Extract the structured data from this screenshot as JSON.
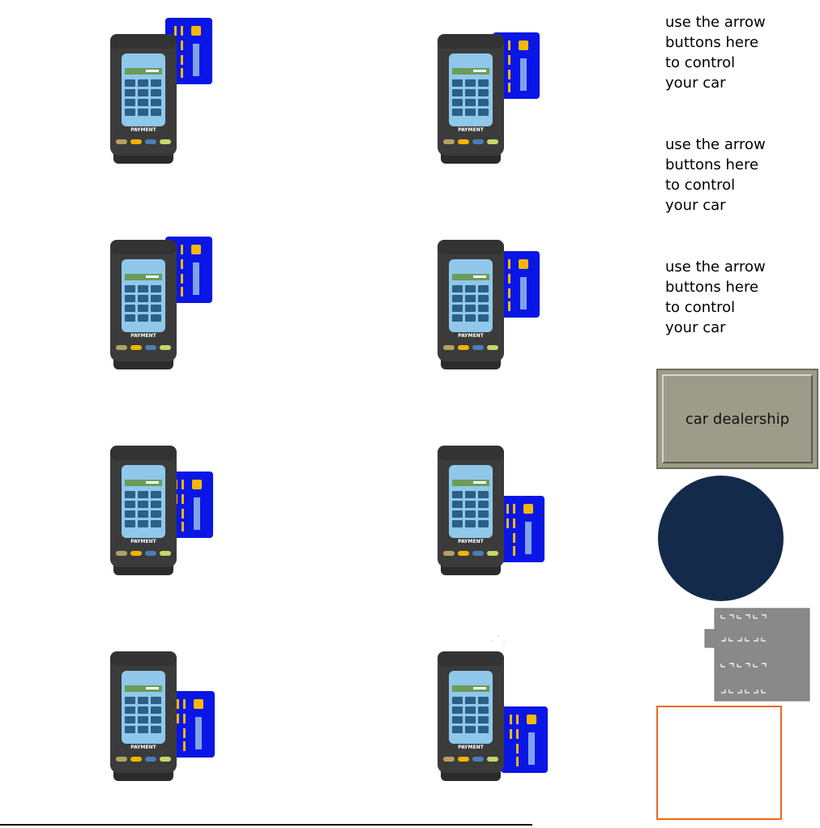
{
  "terminals": [
    {
      "keypad_label": "PAYMENT",
      "card_offset": "upper"
    },
    {
      "keypad_label": "PAYMENT",
      "card_offset": "upper"
    },
    {
      "keypad_label": "PAYMENT",
      "card_offset": "upper"
    },
    {
      "keypad_label": "PAYMENT",
      "card_offset": "middle"
    },
    {
      "keypad_label": "PAYMENT",
      "card_offset": "middle"
    },
    {
      "keypad_label": "PAYMENT",
      "card_offset": "lower"
    },
    {
      "keypad_label": "PAYMENT",
      "card_offset": "lower"
    },
    {
      "keypad_label": "PAYMENT",
      "card_offset": "lower"
    }
  ],
  "hints": [
    "use the arrow\nbuttons here\nto control\nyour car",
    "use the arrow\nbuttons here\nto control\nyour car",
    "use the arrow\nbuttons here\nto control\nyour car"
  ],
  "dealership": {
    "label": "car dealership"
  },
  "colors": {
    "card_blue": "#0a16e6",
    "card_stripe": "#f5b800",
    "terminal_body": "#3b3b3b",
    "screen": "#8fc8ea",
    "screen_bar": "#6b9c5a",
    "key": "#2c5f86",
    "round_pad": "#142a4a",
    "building_gray": "#898989",
    "slot_border": "#ec6a1c",
    "dealer_face": "#9c9c8a"
  },
  "icons": [
    "payment-terminal-icon",
    "credit-card-icon",
    "building-icon"
  ]
}
